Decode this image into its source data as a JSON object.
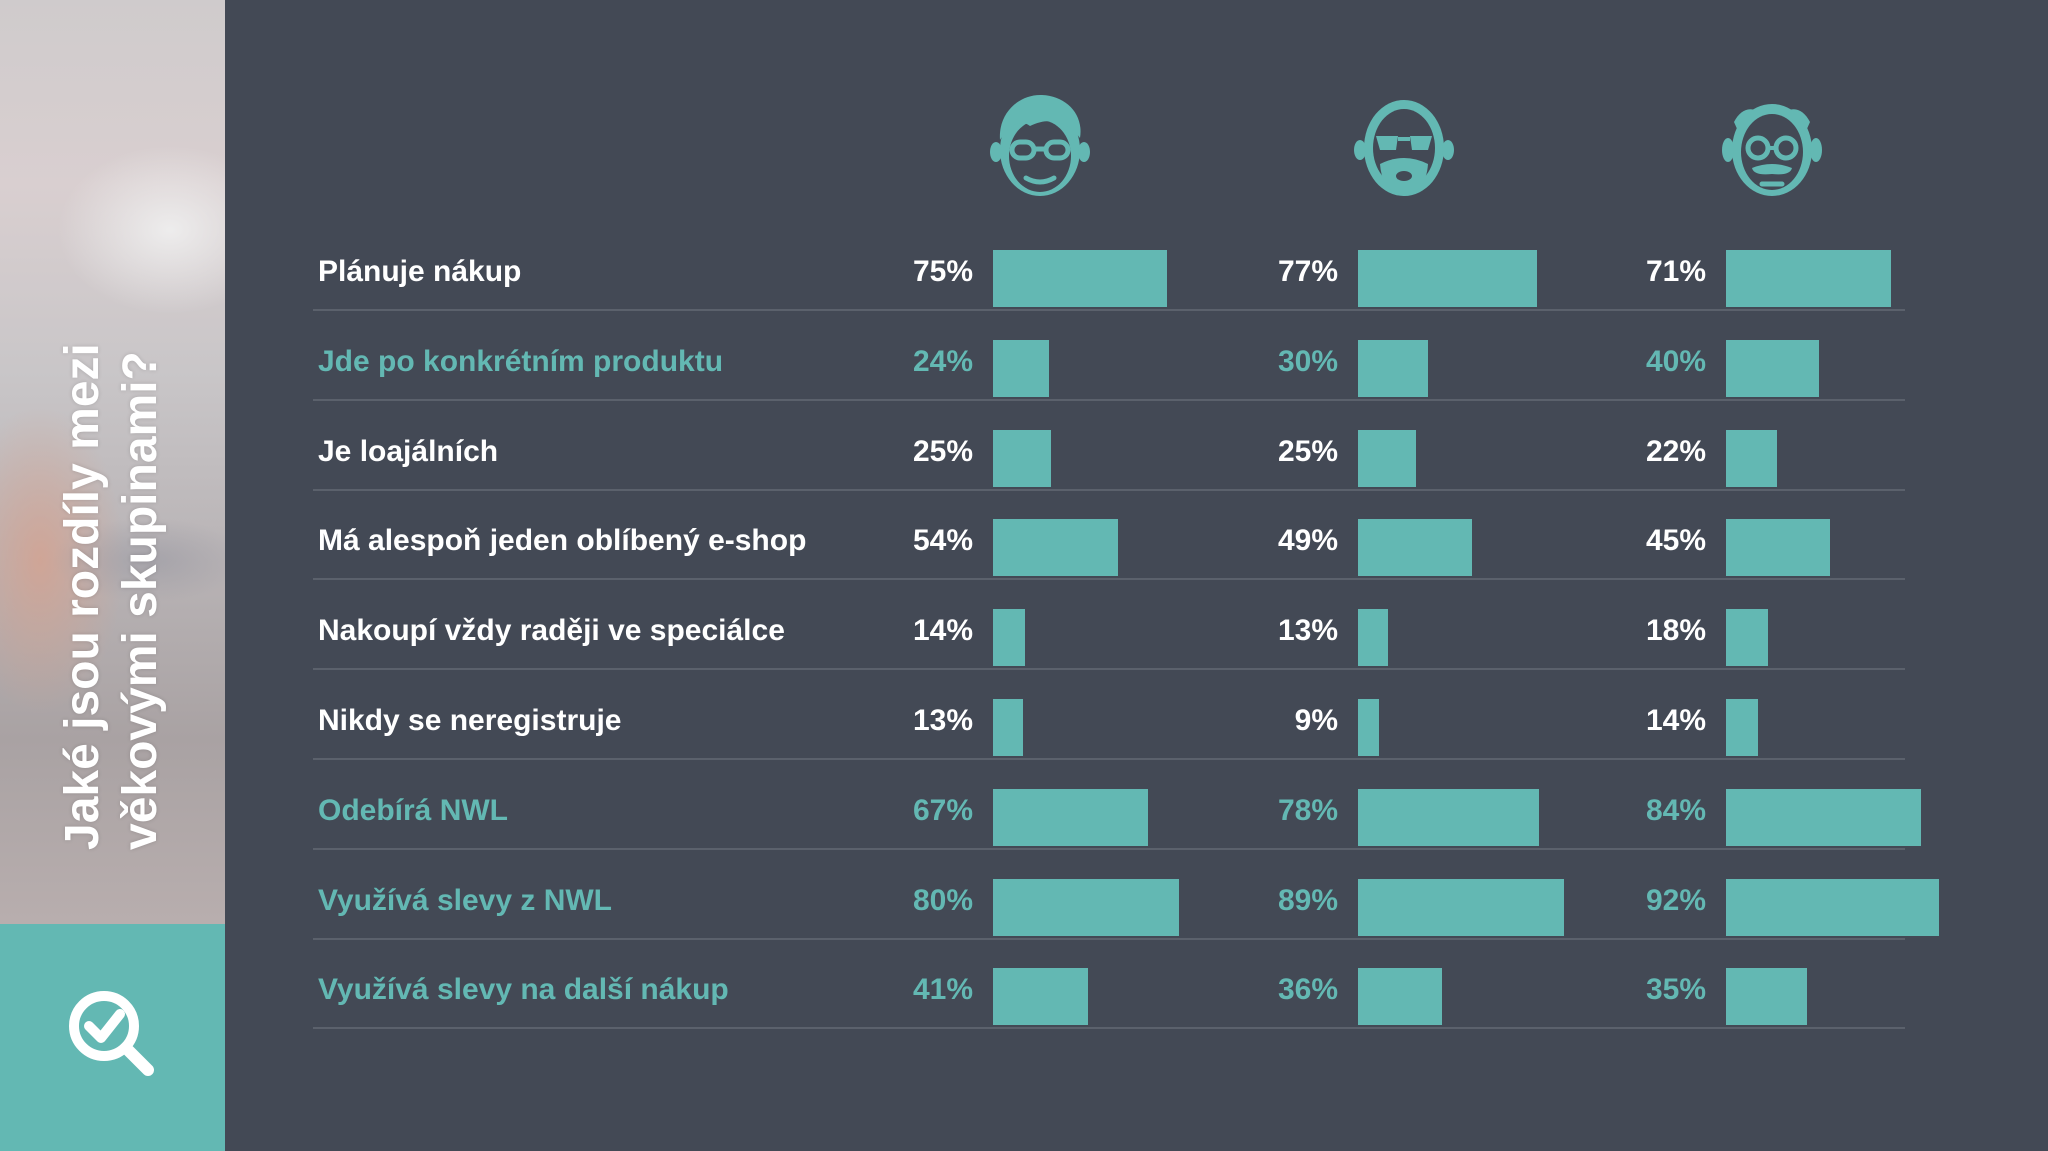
{
  "title_lines": [
    "Jaké jsou rozdíly mezi",
    "věkovými skupinami?"
  ],
  "icons": [
    "young-person-glasses-icon",
    "bearded-person-sunglasses-icon",
    "elderly-person-glasses-icon",
    "search-check-icon"
  ],
  "colors": {
    "background": "#434955",
    "accent": "#63b8b3",
    "text": "#ffffff"
  },
  "chart_data": {
    "type": "bar",
    "orientation": "horizontal",
    "categories": [
      "Plánuje nákup",
      "Jde po konkrétním produktu",
      "Je loajálních",
      "Má alespoň jeden oblíbený e-shop",
      "Nakoupí vždy raději ve speciálce",
      "Nikdy se neregistruje",
      "Odebírá NWL",
      "Využívá slevy z NWL",
      "Využívá slevy na další nákup"
    ],
    "highlighted_categories": [
      1,
      6,
      7,
      8
    ],
    "series": [
      {
        "values": [
          75,
          24,
          25,
          54,
          14,
          13,
          67,
          80,
          41
        ]
      },
      {
        "values": [
          77,
          30,
          25,
          49,
          13,
          9,
          78,
          89,
          36
        ]
      },
      {
        "values": [
          71,
          40,
          22,
          45,
          18,
          14,
          84,
          92,
          35
        ]
      }
    ],
    "value_labels": [
      [
        "75%",
        "24%",
        "25%",
        "54%",
        "14%",
        "13%",
        "67%",
        "80%",
        "41%"
      ],
      [
        "77%",
        "30%",
        "25%",
        "49%",
        "13%",
        "9%",
        "78%",
        "89%",
        "36%"
      ],
      [
        "71%",
        "40%",
        "22%",
        "45%",
        "18%",
        "14%",
        "84%",
        "92%",
        "35%"
      ]
    ],
    "xlim": [
      0,
      100
    ],
    "grid": false,
    "legend": "none"
  }
}
